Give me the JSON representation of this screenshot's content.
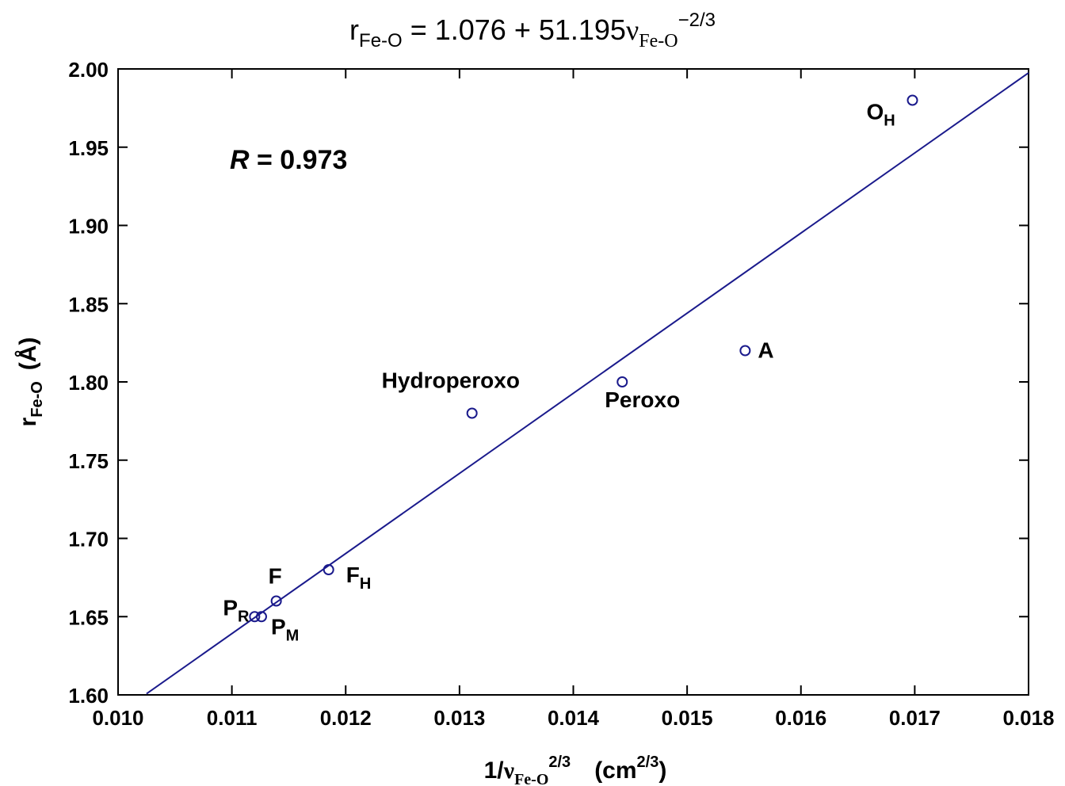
{
  "chart_data": {
    "type": "scatter",
    "title": {
      "r": "r",
      "r_sub": "Fe-O",
      "eq": " = 1.076 + 51.195",
      "nu": "ν",
      "nu_sub": "Fe-O",
      "exp": "−2/3"
    },
    "xlabel": {
      "prefix": "1/",
      "nu": "ν",
      "nu_sub": "Fe-O",
      "exp": "2/3",
      "unit_open": "(cm",
      "unit_exp": "2/3",
      "unit_close": ")"
    },
    "ylabel": {
      "r": "r",
      "r_sub": "Fe-O",
      "unit": "(Å)"
    },
    "xlim": [
      0.01,
      0.018
    ],
    "ylim": [
      1.6,
      2.0
    ],
    "xticks": [
      "0.010",
      "0.011",
      "0.012",
      "0.013",
      "0.014",
      "0.015",
      "0.016",
      "0.017",
      "0.018"
    ],
    "yticks": [
      "1.60",
      "1.65",
      "1.70",
      "1.75",
      "1.80",
      "1.85",
      "1.90",
      "1.95",
      "2.00"
    ],
    "annotation": {
      "italic": "R",
      "rest": " = 0.973"
    },
    "fit_line": {
      "intercept": 1.076,
      "slope": 51.195,
      "x_range": [
        0.01025,
        0.018
      ]
    },
    "colors": {
      "series": "#1a1a8c",
      "axes": "#000000"
    },
    "points": [
      {
        "label": "O",
        "sub": "H",
        "x": 0.01698,
        "y": 1.98
      },
      {
        "label": "A",
        "sub": "",
        "x": 0.01551,
        "y": 1.82
      },
      {
        "label": "Peroxo",
        "sub": "",
        "x": 0.01443,
        "y": 1.8
      },
      {
        "label": "Hydroperoxo",
        "sub": "",
        "x": 0.01311,
        "y": 1.78
      },
      {
        "label": "F",
        "sub": "H",
        "x": 0.01185,
        "y": 1.68
      },
      {
        "label": "F",
        "sub": "",
        "x": 0.01139,
        "y": 1.66
      },
      {
        "label": "P",
        "sub": "R",
        "x": 0.0112,
        "y": 1.65
      },
      {
        "label": "P",
        "sub": "M",
        "x": 0.01126,
        "y": 1.65
      }
    ]
  }
}
